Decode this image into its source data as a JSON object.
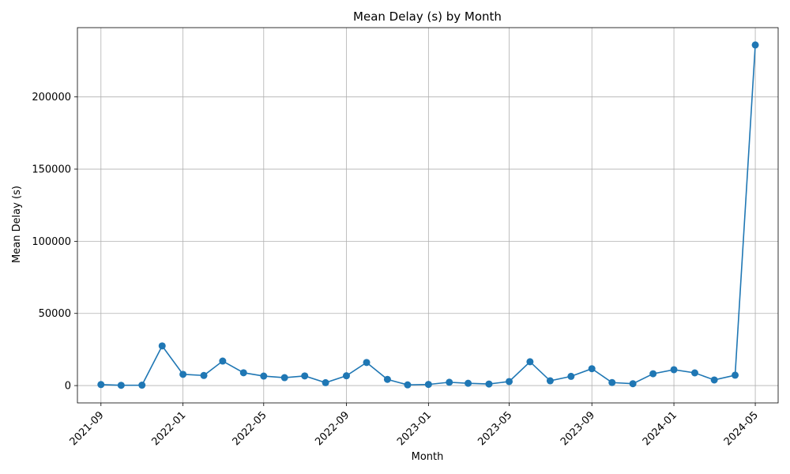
{
  "chart_data": {
    "type": "line",
    "title": "Mean Delay (s) by Month",
    "xlabel": "Month",
    "ylabel": "Mean Delay (s)",
    "x_tick_labels": [
      "2021-09",
      "2022-01",
      "2022-05",
      "2022-09",
      "2023-01",
      "2023-05",
      "2023-09",
      "2024-01",
      "2024-05"
    ],
    "y_tick_labels": [
      "0",
      "50000",
      "100000",
      "150000",
      "200000"
    ],
    "y_ticks": [
      0,
      50000,
      100000,
      150000,
      200000
    ],
    "ylim": [
      -12000,
      248000
    ],
    "xlim": [
      "2021-07-28",
      "2024-06-04"
    ],
    "grid": true,
    "color": "#1f77b4",
    "x": [
      "2021-09-01",
      "2021-10-01",
      "2021-11-01",
      "2021-12-01",
      "2022-01-01",
      "2022-02-01",
      "2022-03-01",
      "2022-04-01",
      "2022-05-01",
      "2022-06-01",
      "2022-07-01",
      "2022-08-01",
      "2022-09-01",
      "2022-10-01",
      "2022-11-01",
      "2022-12-01",
      "2023-01-01",
      "2023-02-01",
      "2023-03-01",
      "2023-04-01",
      "2023-05-01",
      "2023-06-01",
      "2023-07-01",
      "2023-08-01",
      "2023-09-01",
      "2023-10-01",
      "2023-11-01",
      "2023-12-01",
      "2024-01-01",
      "2024-02-01",
      "2024-03-01",
      "2024-04-01",
      "2024-05-01"
    ],
    "values": [
      700,
      200,
      300,
      27500,
      7800,
      7000,
      17000,
      8900,
      6600,
      5500,
      6700,
      2000,
      6800,
      16000,
      4300,
      500,
      800,
      2300,
      1600,
      1100,
      2800,
      16500,
      3300,
      6400,
      11700,
      2100,
      1300,
      8200,
      11000,
      8800,
      3900,
      7200,
      236000
    ]
  }
}
